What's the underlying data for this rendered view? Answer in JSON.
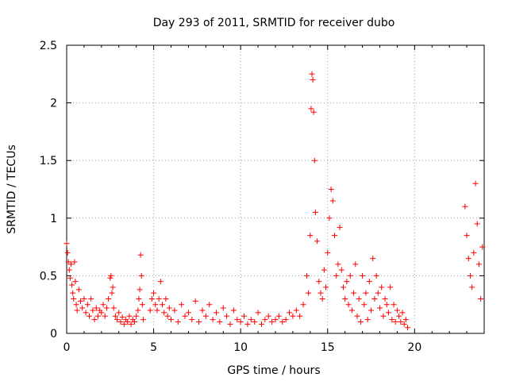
{
  "chart_data": {
    "type": "scatter",
    "title": "Day 293 of 2011, SRMTID for receiver dubo",
    "xlabel": "GPS time / hours",
    "ylabel": "SRMTID / TECUs",
    "xlim": [
      0,
      24
    ],
    "ylim": [
      0,
      2.5
    ],
    "xticks": [
      0,
      5,
      10,
      15,
      20
    ],
    "xtick_labels": [
      "0",
      "5",
      "10",
      "15",
      "20"
    ],
    "yticks": [
      0,
      0.5,
      1,
      1.5,
      2,
      2.5
    ],
    "ytick_labels": [
      "0",
      "0.5",
      "1",
      "1.5",
      "2",
      "2.5"
    ],
    "grid": true,
    "marker": "plus",
    "color": "#ff0000",
    "series": [
      {
        "name": "SRMTID",
        "x": [
          0.0,
          0.05,
          0.1,
          0.15,
          0.2,
          0.25,
          0.3,
          0.35,
          0.4,
          0.45,
          0.5,
          0.55,
          0.6,
          0.7,
          0.8,
          0.9,
          1.0,
          1.1,
          1.2,
          1.3,
          1.4,
          1.5,
          1.6,
          1.7,
          1.8,
          1.9,
          2.0,
          2.1,
          2.2,
          2.3,
          2.4,
          2.5,
          2.55,
          2.6,
          2.65,
          2.7,
          2.8,
          2.9,
          3.0,
          3.1,
          3.2,
          3.3,
          3.4,
          3.5,
          3.6,
          3.7,
          3.8,
          3.9,
          4.0,
          4.1,
          4.15,
          4.2,
          4.25,
          4.3,
          4.35,
          4.4,
          4.8,
          4.9,
          5.0,
          5.1,
          5.2,
          5.3,
          5.4,
          5.5,
          5.6,
          5.7,
          5.8,
          5.9,
          6.0,
          6.2,
          6.4,
          6.6,
          6.8,
          7.0,
          7.2,
          7.4,
          7.6,
          7.8,
          8.0,
          8.2,
          8.4,
          8.6,
          8.8,
          9.0,
          9.2,
          9.4,
          9.6,
          9.8,
          10.0,
          10.2,
          10.4,
          10.6,
          10.8,
          11.0,
          11.2,
          11.4,
          11.6,
          11.8,
          12.0,
          12.2,
          12.4,
          12.6,
          12.8,
          13.0,
          13.2,
          13.4,
          13.6,
          13.8,
          13.9,
          14.0,
          14.05,
          14.1,
          14.15,
          14.2,
          14.25,
          14.3,
          14.4,
          14.5,
          14.6,
          14.7,
          14.8,
          14.9,
          15.0,
          15.1,
          15.2,
          15.3,
          15.4,
          15.5,
          15.6,
          15.7,
          15.8,
          15.9,
          16.0,
          16.1,
          16.2,
          16.3,
          16.4,
          16.5,
          16.6,
          16.7,
          16.8,
          16.9,
          17.0,
          17.1,
          17.2,
          17.3,
          17.4,
          17.5,
          17.6,
          17.7,
          17.8,
          17.9,
          18.0,
          18.1,
          18.2,
          18.3,
          18.4,
          18.5,
          18.6,
          18.7,
          18.8,
          18.9,
          19.0,
          19.1,
          19.2,
          19.3,
          19.4,
          19.5,
          19.6,
          22.9,
          23.0,
          23.1,
          23.2,
          23.3,
          23.4,
          23.5,
          23.6,
          23.7,
          23.8,
          23.9
        ],
        "y": [
          0.78,
          0.7,
          0.62,
          0.55,
          0.48,
          0.6,
          0.42,
          0.35,
          0.3,
          0.62,
          0.45,
          0.25,
          0.2,
          0.38,
          0.28,
          0.22,
          0.3,
          0.18,
          0.25,
          0.15,
          0.3,
          0.2,
          0.12,
          0.22,
          0.15,
          0.2,
          0.18,
          0.25,
          0.15,
          0.22,
          0.3,
          0.48,
          0.5,
          0.35,
          0.4,
          0.22,
          0.15,
          0.12,
          0.18,
          0.1,
          0.14,
          0.08,
          0.12,
          0.1,
          0.15,
          0.08,
          0.12,
          0.1,
          0.15,
          0.2,
          0.3,
          0.38,
          0.68,
          0.5,
          0.25,
          0.12,
          0.2,
          0.3,
          0.35,
          0.25,
          0.2,
          0.3,
          0.45,
          0.25,
          0.18,
          0.3,
          0.15,
          0.22,
          0.12,
          0.2,
          0.1,
          0.25,
          0.15,
          0.18,
          0.12,
          0.28,
          0.1,
          0.2,
          0.15,
          0.25,
          0.12,
          0.18,
          0.1,
          0.22,
          0.15,
          0.08,
          0.2,
          0.12,
          0.1,
          0.15,
          0.08,
          0.12,
          0.1,
          0.18,
          0.08,
          0.12,
          0.15,
          0.1,
          0.12,
          0.15,
          0.1,
          0.12,
          0.18,
          0.15,
          0.2,
          0.15,
          0.25,
          0.5,
          0.35,
          0.85,
          1.95,
          2.25,
          2.2,
          1.92,
          1.5,
          1.05,
          0.8,
          0.45,
          0.35,
          0.3,
          0.55,
          0.4,
          0.7,
          1.0,
          1.25,
          1.15,
          0.85,
          0.5,
          0.6,
          0.92,
          0.55,
          0.4,
          0.3,
          0.45,
          0.25,
          0.5,
          0.2,
          0.35,
          0.6,
          0.15,
          0.3,
          0.1,
          0.5,
          0.25,
          0.35,
          0.12,
          0.45,
          0.2,
          0.65,
          0.3,
          0.5,
          0.35,
          0.22,
          0.4,
          0.15,
          0.3,
          0.25,
          0.18,
          0.4,
          0.12,
          0.25,
          0.1,
          0.2,
          0.15,
          0.1,
          0.18,
          0.08,
          0.12,
          0.05,
          1.1,
          0.85,
          0.65,
          0.5,
          0.4,
          0.7,
          1.3,
          0.95,
          0.6,
          0.3,
          0.75
        ]
      }
    ]
  }
}
